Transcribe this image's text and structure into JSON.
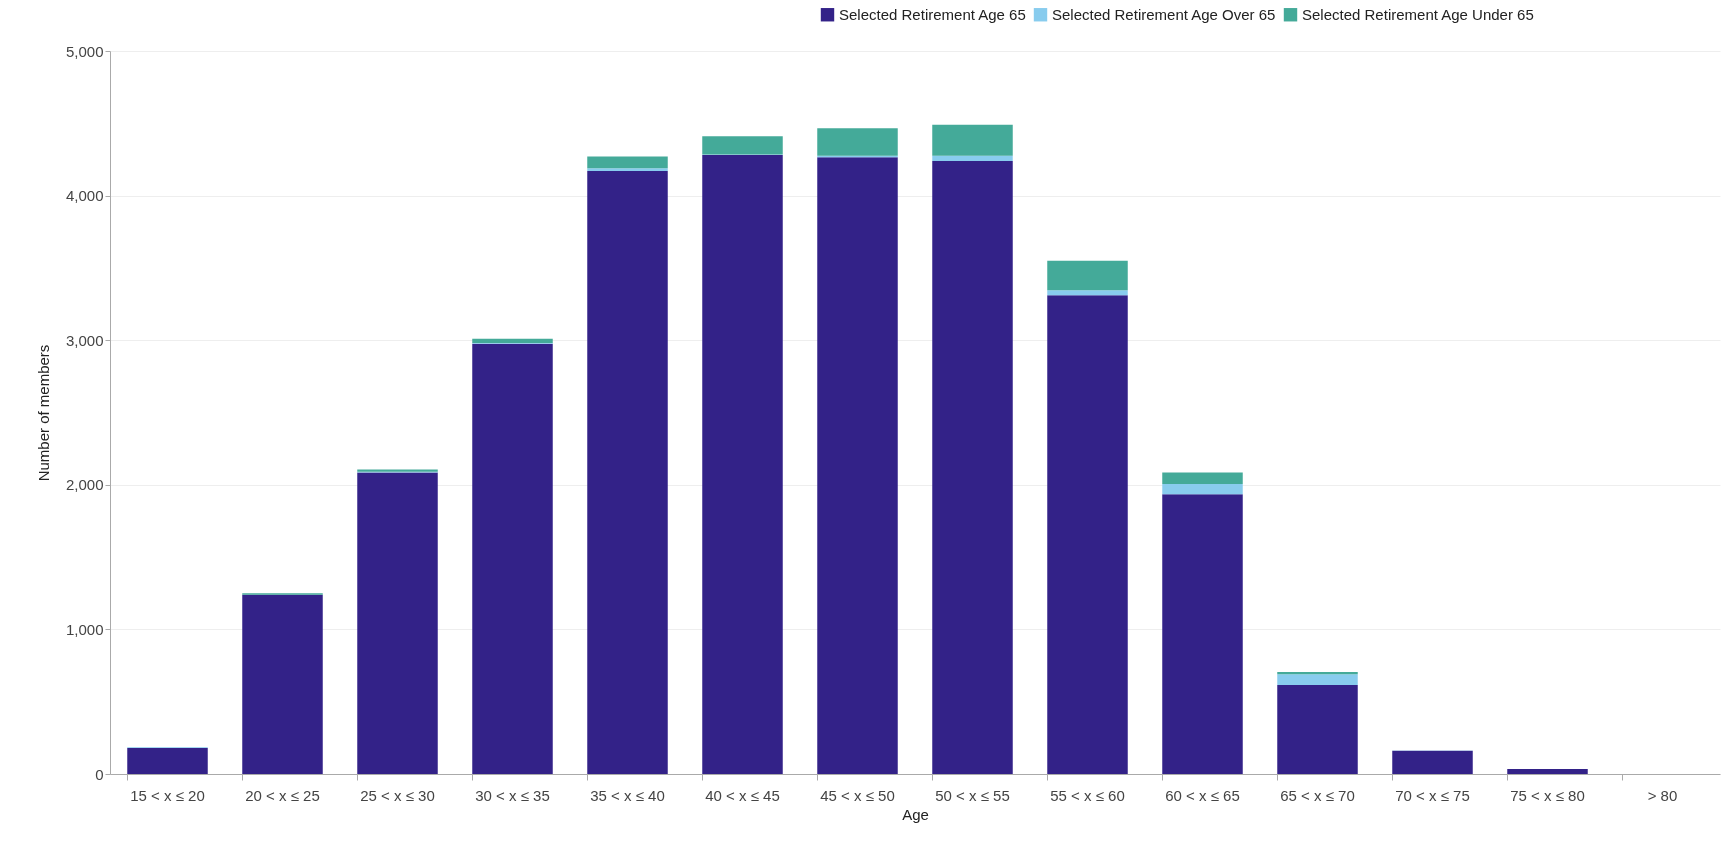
{
  "chart_data": {
    "type": "bar",
    "stacked": true,
    "xlabel": "Age",
    "ylabel": "Number of members",
    "categories": [
      "15 < x ≤ 20",
      "20 < x ≤ 25",
      "25 < x ≤ 30",
      "30 < x ≤ 35",
      "35 < x ≤ 40",
      "40 < x ≤ 45",
      "45 < x ≤ 50",
      "50 < x ≤ 55",
      "55 < x ≤ 60",
      "60 < x ≤ 65",
      "65 < x ≤ 70",
      "70 < x ≤ 75",
      "75 < x ≤ 80",
      "> 80"
    ],
    "series": [
      {
        "name": "Selected Retirement Age 65",
        "color": "#332288",
        "values": [
          180,
          1240,
          2085,
          2975,
          4170,
          4280,
          4265,
          4240,
          3310,
          1935,
          615,
          160,
          35,
          0
        ]
      },
      {
        "name": "Selected Retirement Age Over 65",
        "color": "#88ccee",
        "values": [
          5,
          0,
          5,
          5,
          20,
          5,
          10,
          35,
          35,
          70,
          75,
          3,
          0,
          0
        ]
      },
      {
        "name": "Selected Retirement Age Under 65",
        "color": "#44aa99",
        "values": [
          0,
          10,
          15,
          30,
          80,
          125,
          190,
          215,
          205,
          80,
          15,
          0,
          0,
          0
        ]
      }
    ],
    "ylim": [
      0,
      5000
    ],
    "yticks": [
      0,
      {
        "value": 1000,
        "label": "1,000"
      },
      {
        "value": 2000,
        "label": "2,000"
      },
      {
        "value": 3000,
        "label": "3,000"
      },
      {
        "value": 4000,
        "label": "4,000"
      },
      {
        "value": 5000,
        "label": "5,000"
      }
    ],
    "grid": "y",
    "legend": "top right"
  }
}
